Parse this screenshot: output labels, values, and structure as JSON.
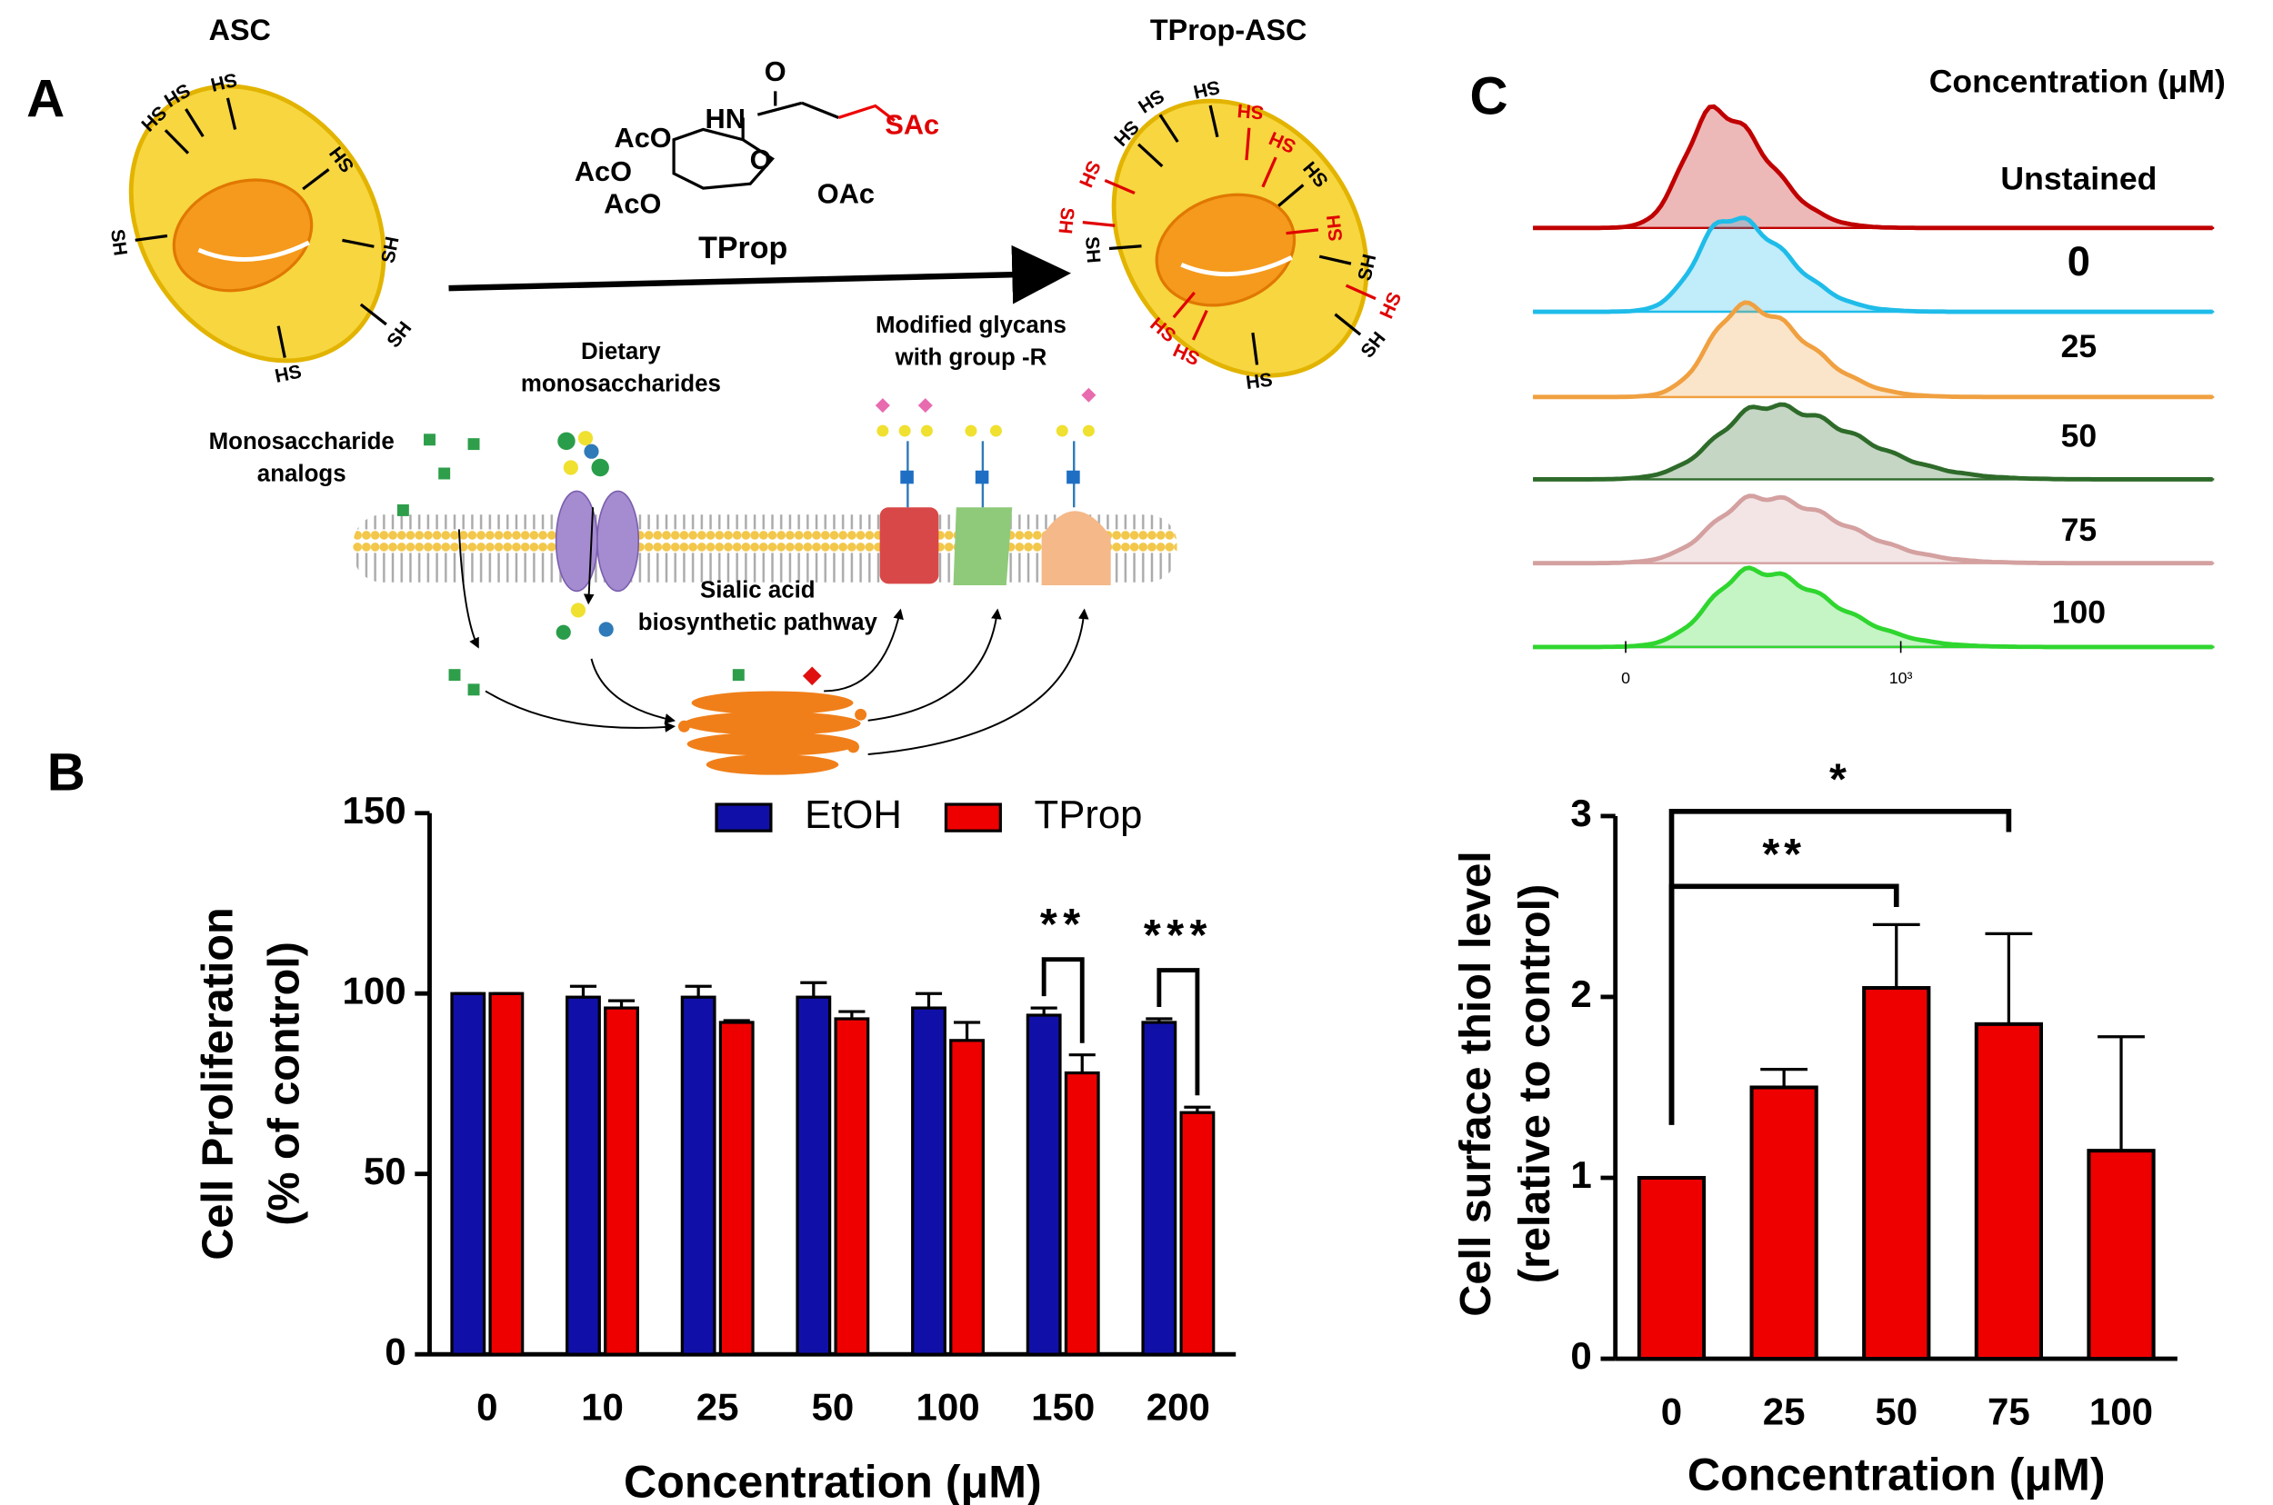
{
  "panel_a": {
    "label": "A",
    "cell_before": "ASC",
    "cell_after": "TProp-ASC",
    "reagent": "TProp",
    "structure": [
      "O",
      "HN",
      "SAc",
      "AcO",
      "AcO",
      "AcO",
      "O",
      "OAc"
    ],
    "thiols_before": [
      "SH",
      "SH",
      "SH",
      "SH",
      "SH",
      "SH",
      "SH",
      "HS"
    ],
    "thiols_after": [
      "SH",
      "SH",
      "SH",
      "SH",
      "SH",
      "SH",
      "SH",
      "HS"
    ],
    "new_thiols": [
      "SH",
      "SH",
      "SH",
      "SH",
      "SH",
      "HS",
      "HS",
      "HS"
    ],
    "pathway": {
      "dietary": [
        "Dietary",
        "monosaccharides"
      ],
      "glycans": [
        "Modified glycans",
        "with group -R"
      ],
      "analogs": [
        "Monosaccharide",
        "analogs"
      ],
      "sialic": [
        "Sialic acid",
        "biosynthetic pathway"
      ]
    }
  },
  "panel_c_histogram": {
    "label": "C",
    "title": "Concentration (μM)",
    "series": [
      {
        "name": "Unstained",
        "color": "#c00000"
      },
      {
        "name": "0",
        "color": "#1fbce9"
      },
      {
        "name": "25",
        "color": "#f0a040"
      },
      {
        "name": "50",
        "color": "#2e6b2a"
      },
      {
        "name": "75",
        "color": "#d4a0a0"
      },
      {
        "name": "100",
        "color": "#2fd62f"
      }
    ],
    "xticks": [
      "0",
      "10³"
    ]
  },
  "chart_data": [
    {
      "type": "bar",
      "panel": "B",
      "xlabel": "Concentration (μM)",
      "ylabel": [
        "Cell Proliferation",
        "(% of control)"
      ],
      "categories": [
        "0",
        "10",
        "25",
        "50",
        "100",
        "150",
        "200"
      ],
      "series": [
        {
          "name": "EtOH",
          "color": "#1010a8",
          "values": [
            100,
            99,
            99,
            99,
            96,
            94,
            92
          ],
          "errors": [
            0,
            3,
            3,
            4,
            4,
            2,
            1
          ]
        },
        {
          "name": "TProp",
          "color": "#ee0000",
          "values": [
            100,
            96,
            92,
            93,
            87,
            78,
            67
          ],
          "errors": [
            0,
            2,
            0.5,
            2,
            5,
            5,
            1.5
          ]
        }
      ],
      "significance": [
        null,
        null,
        null,
        null,
        null,
        "**",
        "***"
      ],
      "ylim": [
        0,
        150
      ],
      "yticks": [
        0,
        50,
        100,
        150
      ],
      "legend": "top"
    },
    {
      "type": "bar",
      "xlabel": "Concentration (μM)",
      "ylabel": [
        "Cell surface thiol level",
        "(relative to control)"
      ],
      "categories": [
        "0",
        "25",
        "50",
        "75",
        "100"
      ],
      "color": "#ee0000",
      "values": [
        1.0,
        1.5,
        2.05,
        1.85,
        1.15
      ],
      "errors": [
        0,
        0.1,
        0.35,
        0.5,
        0.63
      ],
      "comparisons": [
        {
          "label": "**",
          "from": "0",
          "to": "50"
        },
        {
          "label": "*",
          "from": "0",
          "to": "75"
        }
      ],
      "ylim": [
        0,
        3
      ],
      "yticks": [
        0,
        1,
        2,
        3
      ]
    }
  ]
}
